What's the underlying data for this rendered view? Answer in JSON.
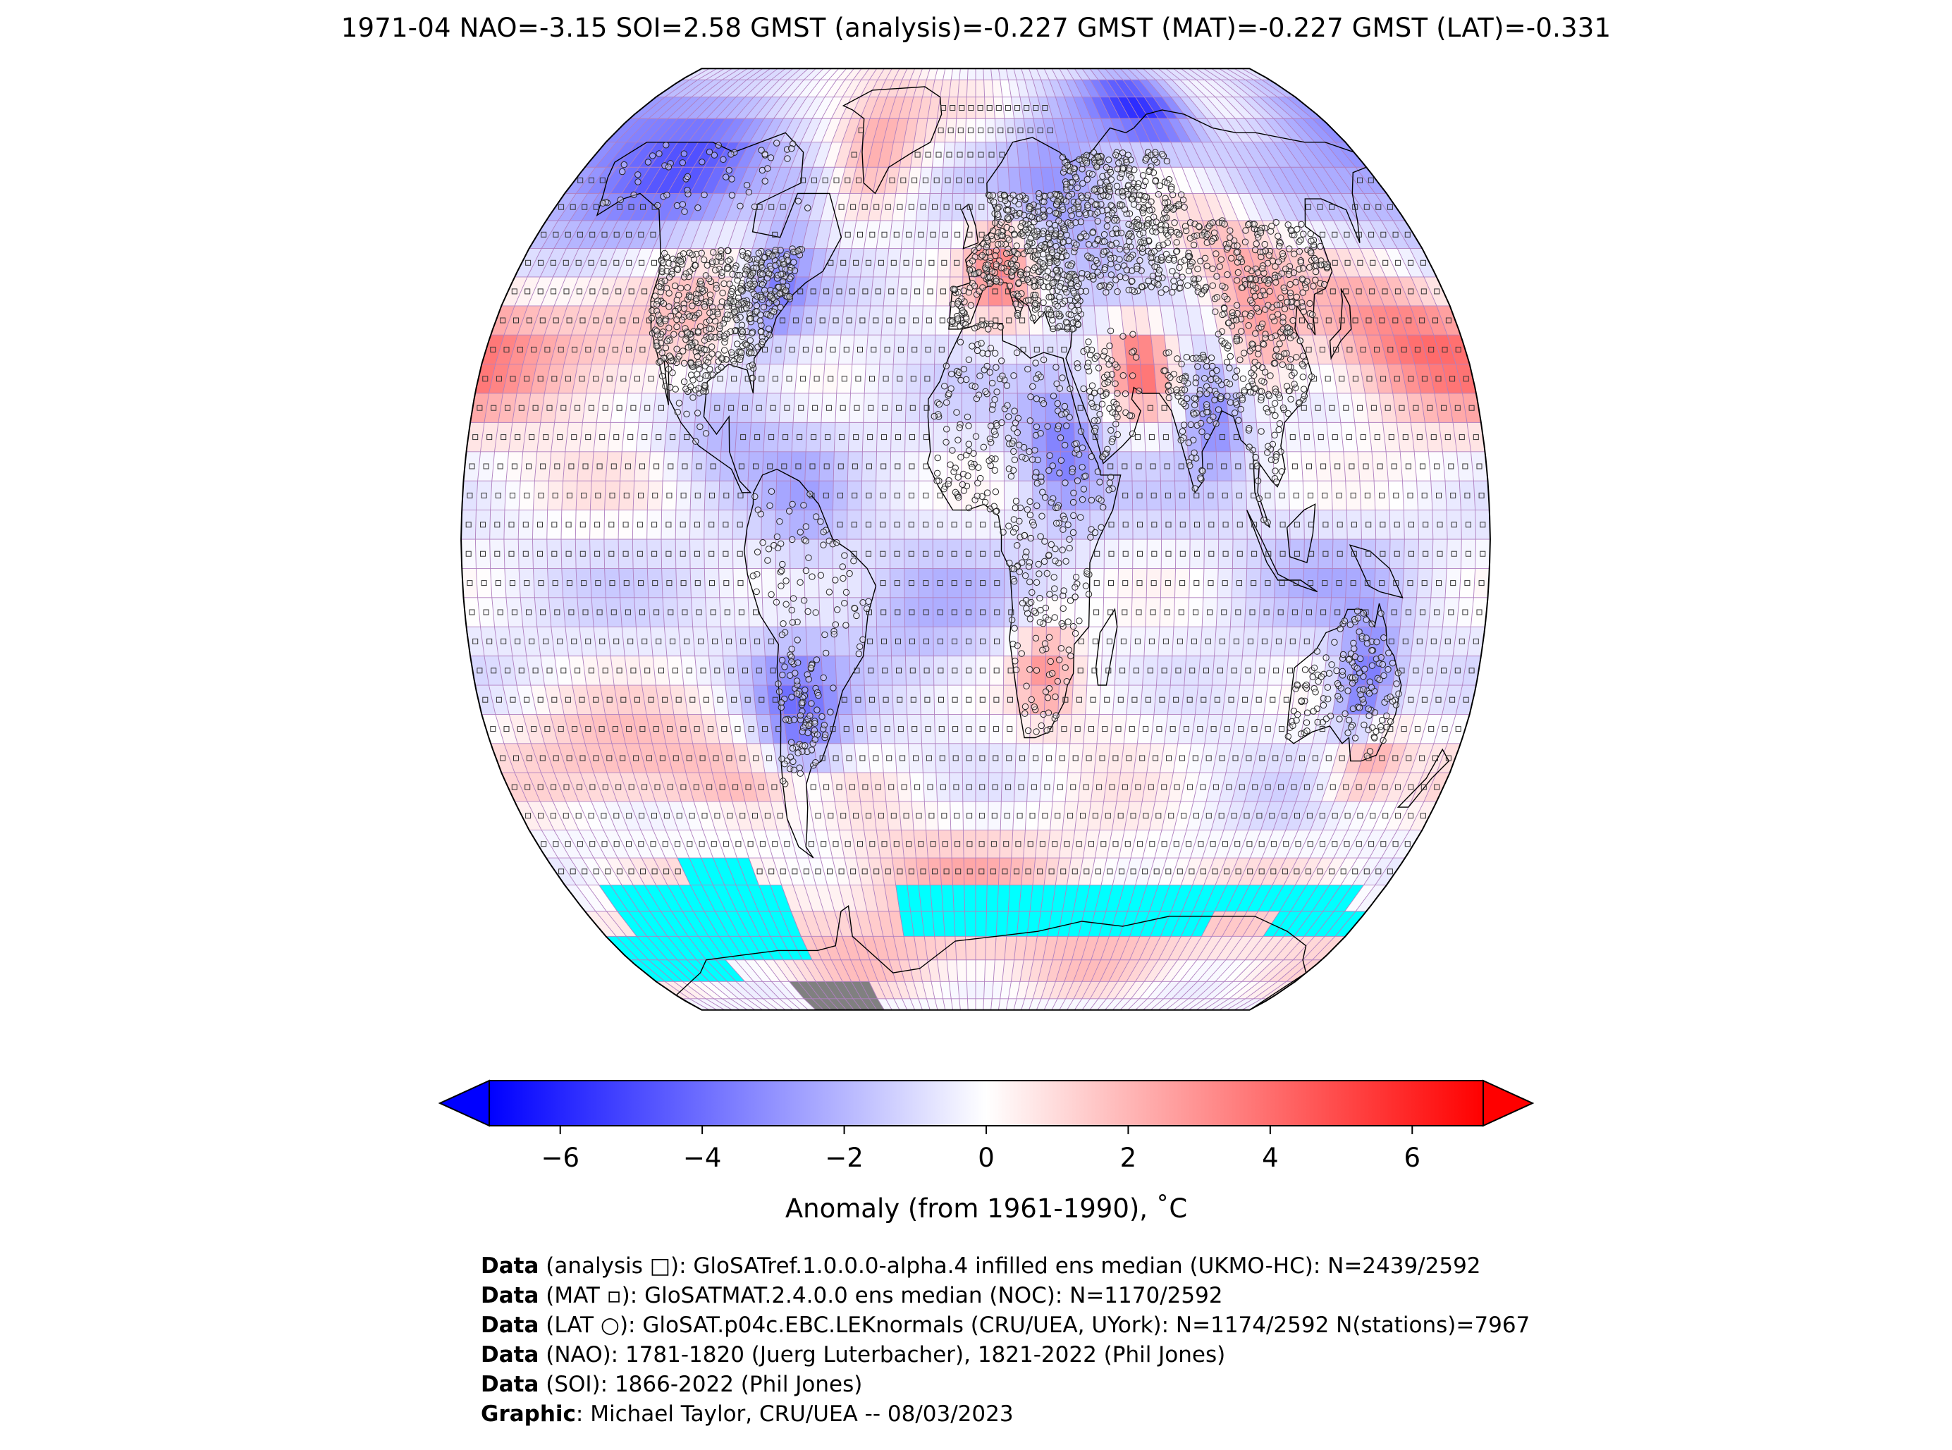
{
  "title": "1971-04 NAO=-3.15 SOI=2.58 GMST (analysis)=-0.227 GMST (MAT)=-0.227 GMST (LAT)=-0.331",
  "colorbar": {
    "label": "Anomaly (from 1961-1990), ˚C",
    "ticks": [
      "−6",
      "−4",
      "−2",
      "0",
      "2",
      "4",
      "6"
    ],
    "tick_values": [
      -6,
      -4,
      -2,
      0,
      2,
      4,
      6
    ],
    "colors": {
      "min": "#0000ff",
      "mid": "#ffffff",
      "max": "#ff0000"
    }
  },
  "map": {
    "projection": "Robinson",
    "grid_resolution_deg": 5,
    "grid_line_color": "#b080c0",
    "sea_ice_color": "#00ffff",
    "land_ice_color": "#808080",
    "marker_legend": {
      "analysis": "□",
      "MAT": "▫",
      "LAT": "○"
    }
  },
  "credits": [
    {
      "key": "Data",
      "text": " (analysis □): GloSATref.1.0.0.0-alpha.4 infilled ens median (UKMO-HC): N=2439/2592"
    },
    {
      "key": "Data",
      "text": " (MAT ▫): GloSATMAT.2.4.0.0 ens median (NOC): N=1170/2592"
    },
    {
      "key": "Data",
      "text": " (LAT ○): GloSAT.p04c.EBC.LEKnormals (CRU/UEA, UYork): N=1174/2592 N(stations)=7967"
    },
    {
      "key": "Data",
      "text": " (NAO): 1781-1820 (Juerg Luterbacher), 1821-2022 (Phil Jones)"
    },
    {
      "key": "Data",
      "text": " (SOI): 1866-2022 (Phil Jones)"
    },
    {
      "key": "Graphic",
      "text": ": Michael Taylor, CRU/UEA -- 08/03/2023"
    }
  ]
}
